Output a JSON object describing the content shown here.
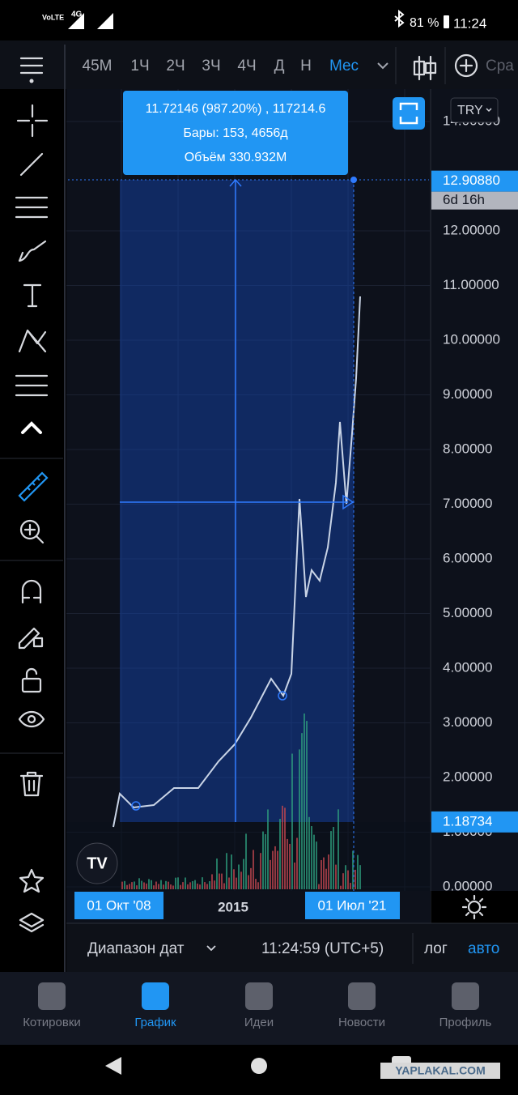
{
  "status_bar": {
    "network": "4G",
    "battery": "81 %",
    "time": "11:24"
  },
  "toolbar": {
    "intervals": [
      "45М",
      "1Ч",
      "2Ч",
      "3Ч",
      "4Ч",
      "Д",
      "Н",
      "Мес"
    ],
    "active_index": 7,
    "compare": "Сра"
  },
  "measure": {
    "lines": [
      "11.72146 (987.20%) , 117214.6",
      "Бары: 153, 4656д",
      "Объём 330.932M"
    ]
  },
  "currency": "TRY",
  "price_axis": {
    "ticks": [
      {
        "value": 14,
        "label": "14.00000"
      },
      {
        "value": 12,
        "label": "12.00000"
      },
      {
        "value": 11,
        "label": "11.00000"
      },
      {
        "value": 10,
        "label": "10.00000"
      },
      {
        "value": 9,
        "label": "9.00000"
      },
      {
        "value": 8,
        "label": "8.00000"
      },
      {
        "value": 7,
        "label": "7.00000"
      },
      {
        "value": 6,
        "label": "6.00000"
      },
      {
        "value": 5,
        "label": "5.00000"
      },
      {
        "value": 4,
        "label": "4.00000"
      },
      {
        "value": 3,
        "label": "3.00000"
      },
      {
        "value": 2,
        "label": "2.00000"
      },
      {
        "value": 1,
        "label": "1.00000"
      },
      {
        "value": 0,
        "label": "0.00000"
      }
    ],
    "current": {
      "value": 12.9088,
      "label": "12.90880"
    },
    "countdown": "6d 16h",
    "range_start": {
      "value": 1.18734,
      "label": "1.18734"
    }
  },
  "time_axis": {
    "start": "01 Окт '08",
    "mid": "2015",
    "end": "01 Июл '21"
  },
  "bottom_bar": {
    "date_range": "Диапазон дат",
    "clock": "11:24:59 (UTC+5)",
    "log": "лог",
    "auto": "авто"
  },
  "nav": {
    "items": [
      "Котировки",
      "График",
      "Идеи",
      "Новости",
      "Профиль"
    ],
    "active_index": 1
  },
  "watermark": "YAPLAKAL.COM"
}
